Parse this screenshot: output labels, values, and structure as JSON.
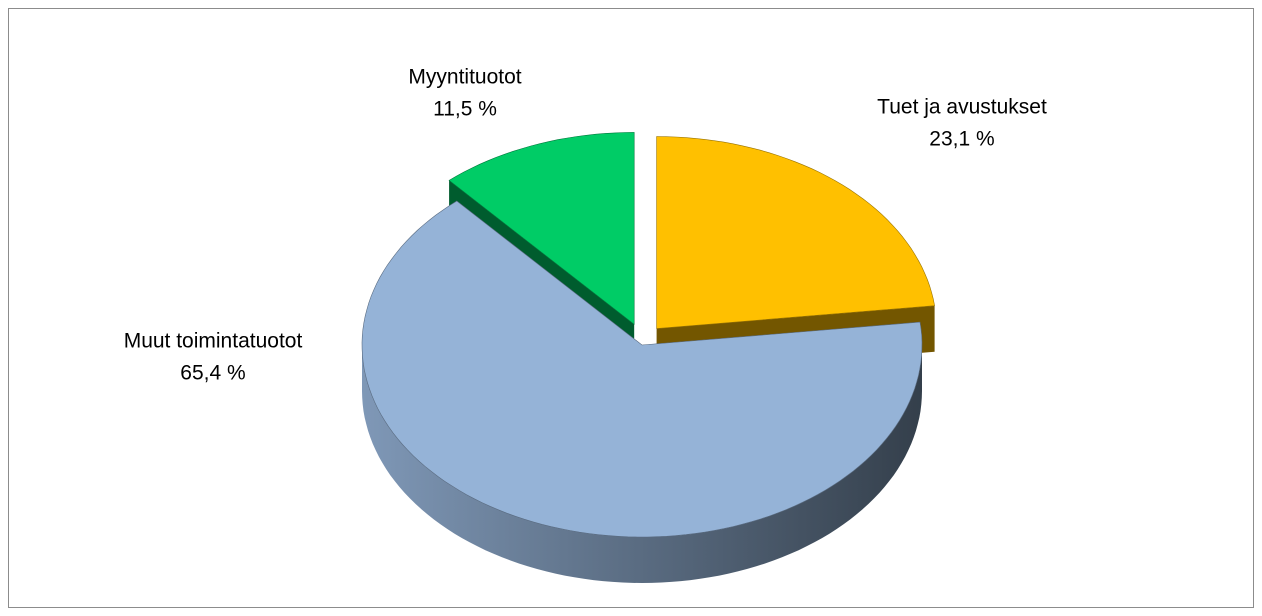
{
  "chart_data": {
    "type": "pie",
    "categories": [
      "Tuet ja avustukset",
      "Muut toimintatuotot",
      "Myyntituotot"
    ],
    "values": [
      23.1,
      65.4,
      11.5
    ],
    "value_labels": [
      "23,1 %",
      "65,4 %",
      "11,5 %"
    ],
    "colors": [
      "#ffc000",
      "#95b3d7",
      "#00cc66"
    ]
  }
}
